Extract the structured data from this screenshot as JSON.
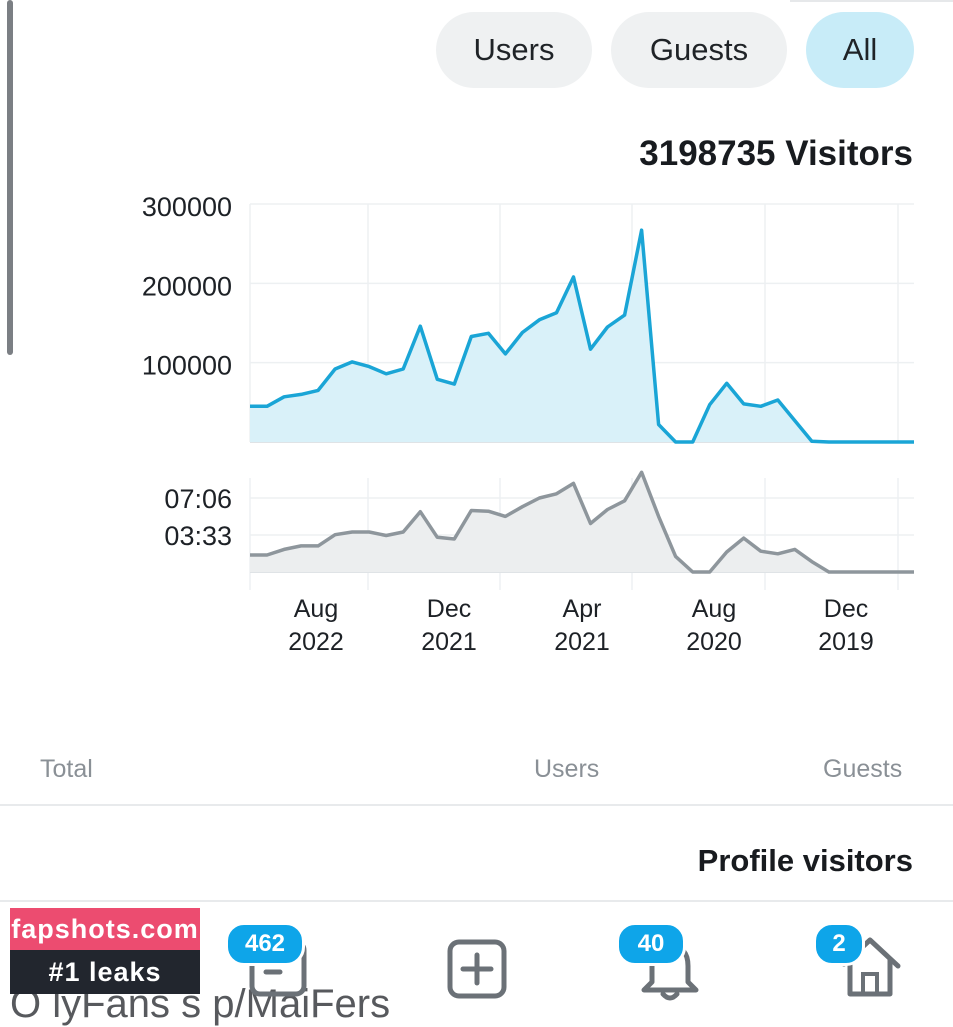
{
  "filters": {
    "users": "Users",
    "guests": "Guests",
    "all": "All",
    "active": "All"
  },
  "summary": {
    "title": "3198735 Visitors"
  },
  "legend": {
    "total": "Total",
    "users": "Users",
    "guests": "Guests"
  },
  "profile_section": {
    "title": "Profile visitors"
  },
  "tabbar": {
    "behind_text": "O lyFans s p/MaiFers",
    "messages_badge": "462",
    "notifications_badge": "40",
    "home_badge": "2"
  },
  "watermark": {
    "line1": "fapshots.com",
    "line2": "#1 leaks"
  },
  "colors": {
    "visitors_line": "#1aa5d6",
    "visitors_fill": "#d9f1f9",
    "duration_line": "#8e969c",
    "duration_fill": "#eceeef",
    "active_pill": "#c8ecf8",
    "badge": "#0ea5e9"
  },
  "chart_data": [
    {
      "type": "area",
      "title": "3198735 Visitors",
      "x_direction": "right-to-left",
      "y_ticks": [
        "300000",
        "200000",
        "100000"
      ],
      "ylim": [
        0,
        300000
      ],
      "values": [
        45000,
        45000,
        57000,
        60000,
        65000,
        92000,
        101000,
        95000,
        86000,
        92000,
        146000,
        79000,
        73000,
        133000,
        137000,
        111000,
        138000,
        154000,
        163000,
        208000,
        117000,
        145000,
        160000,
        267000,
        22000,
        0,
        0,
        47000,
        74000,
        48000,
        45000,
        53000,
        27000,
        1000,
        0,
        0,
        0,
        0,
        0,
        0
      ]
    },
    {
      "type": "area",
      "x_direction": "right-to-left",
      "y_ticks": [
        "07:06",
        "03:33"
      ],
      "x_ticks": [
        [
          "Aug",
          "2022"
        ],
        [
          "Dec",
          "2021"
        ],
        [
          "Apr",
          "2021"
        ],
        [
          "Aug",
          "2020"
        ],
        [
          "Dec",
          "2019"
        ]
      ],
      "values_seconds": [
        98,
        98,
        130,
        150,
        150,
        215,
        230,
        230,
        210,
        230,
        347,
        200,
        190,
        354,
        350,
        320,
        376,
        426,
        450,
        510,
        279,
        360,
        410,
        574,
        320,
        90,
        0,
        0,
        115,
        195,
        120,
        105,
        130,
        60,
        0,
        0,
        0,
        0,
        0,
        0
      ]
    }
  ]
}
